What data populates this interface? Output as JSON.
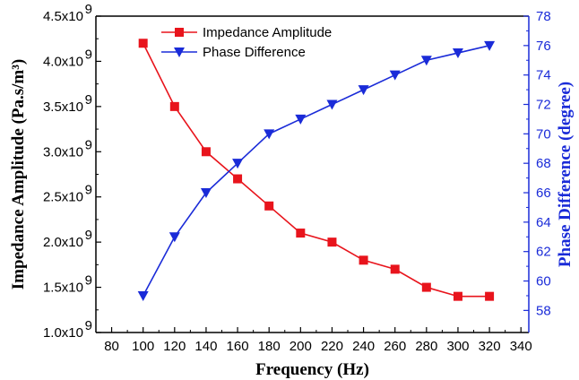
{
  "chart_data": {
    "type": "line",
    "xlabel": "Frequency  (Hz)",
    "ylabel_left": "Impedance Amplitude (Pa.s/m³)",
    "ylabel_right": "Phase Difference (degree)",
    "xlim": [
      70,
      345
    ],
    "xticks": [
      80,
      100,
      120,
      140,
      160,
      180,
      200,
      220,
      240,
      260,
      280,
      300,
      320,
      340
    ],
    "ylim_left": [
      1.0,
      4.5
    ],
    "yticks_left": [
      {
        "value": 1.0,
        "mantissa": "1.0x10",
        "exp": "9"
      },
      {
        "value": 1.5,
        "mantissa": "1.5x10",
        "exp": "9"
      },
      {
        "value": 2.0,
        "mantissa": "2.0x10",
        "exp": "9"
      },
      {
        "value": 2.5,
        "mantissa": "2.5x10",
        "exp": "9"
      },
      {
        "value": 3.0,
        "mantissa": "3.0x10",
        "exp": "9"
      },
      {
        "value": 3.5,
        "mantissa": "3.5x10",
        "exp": "9"
      },
      {
        "value": 4.0,
        "mantissa": "4.0x10",
        "exp": "9"
      },
      {
        "value": 4.5,
        "mantissa": "4.5x10",
        "exp": "9"
      }
    ],
    "ylim_right": [
      56.5,
      78
    ],
    "yticks_right": [
      58,
      60,
      62,
      64,
      66,
      68,
      70,
      72,
      74,
      76,
      78
    ],
    "legend_position": "top-center",
    "x": [
      100,
      120,
      140,
      160,
      180,
      200,
      220,
      240,
      260,
      280,
      300,
      320
    ],
    "series": [
      {
        "name": "Impedance Amplitude",
        "axis": "left",
        "marker": "square",
        "color": "#e8141c",
        "values": [
          4.2,
          3.5,
          3.0,
          2.7,
          2.4,
          2.1,
          2.0,
          1.8,
          1.7,
          1.5,
          1.4,
          1.4
        ]
      },
      {
        "name": "Phase Difference",
        "axis": "right",
        "marker": "triangle-down",
        "color": "#1a2bd8",
        "values": [
          59,
          63,
          66,
          68,
          70,
          71,
          72,
          73,
          74,
          75,
          75.5,
          76
        ]
      }
    ]
  }
}
